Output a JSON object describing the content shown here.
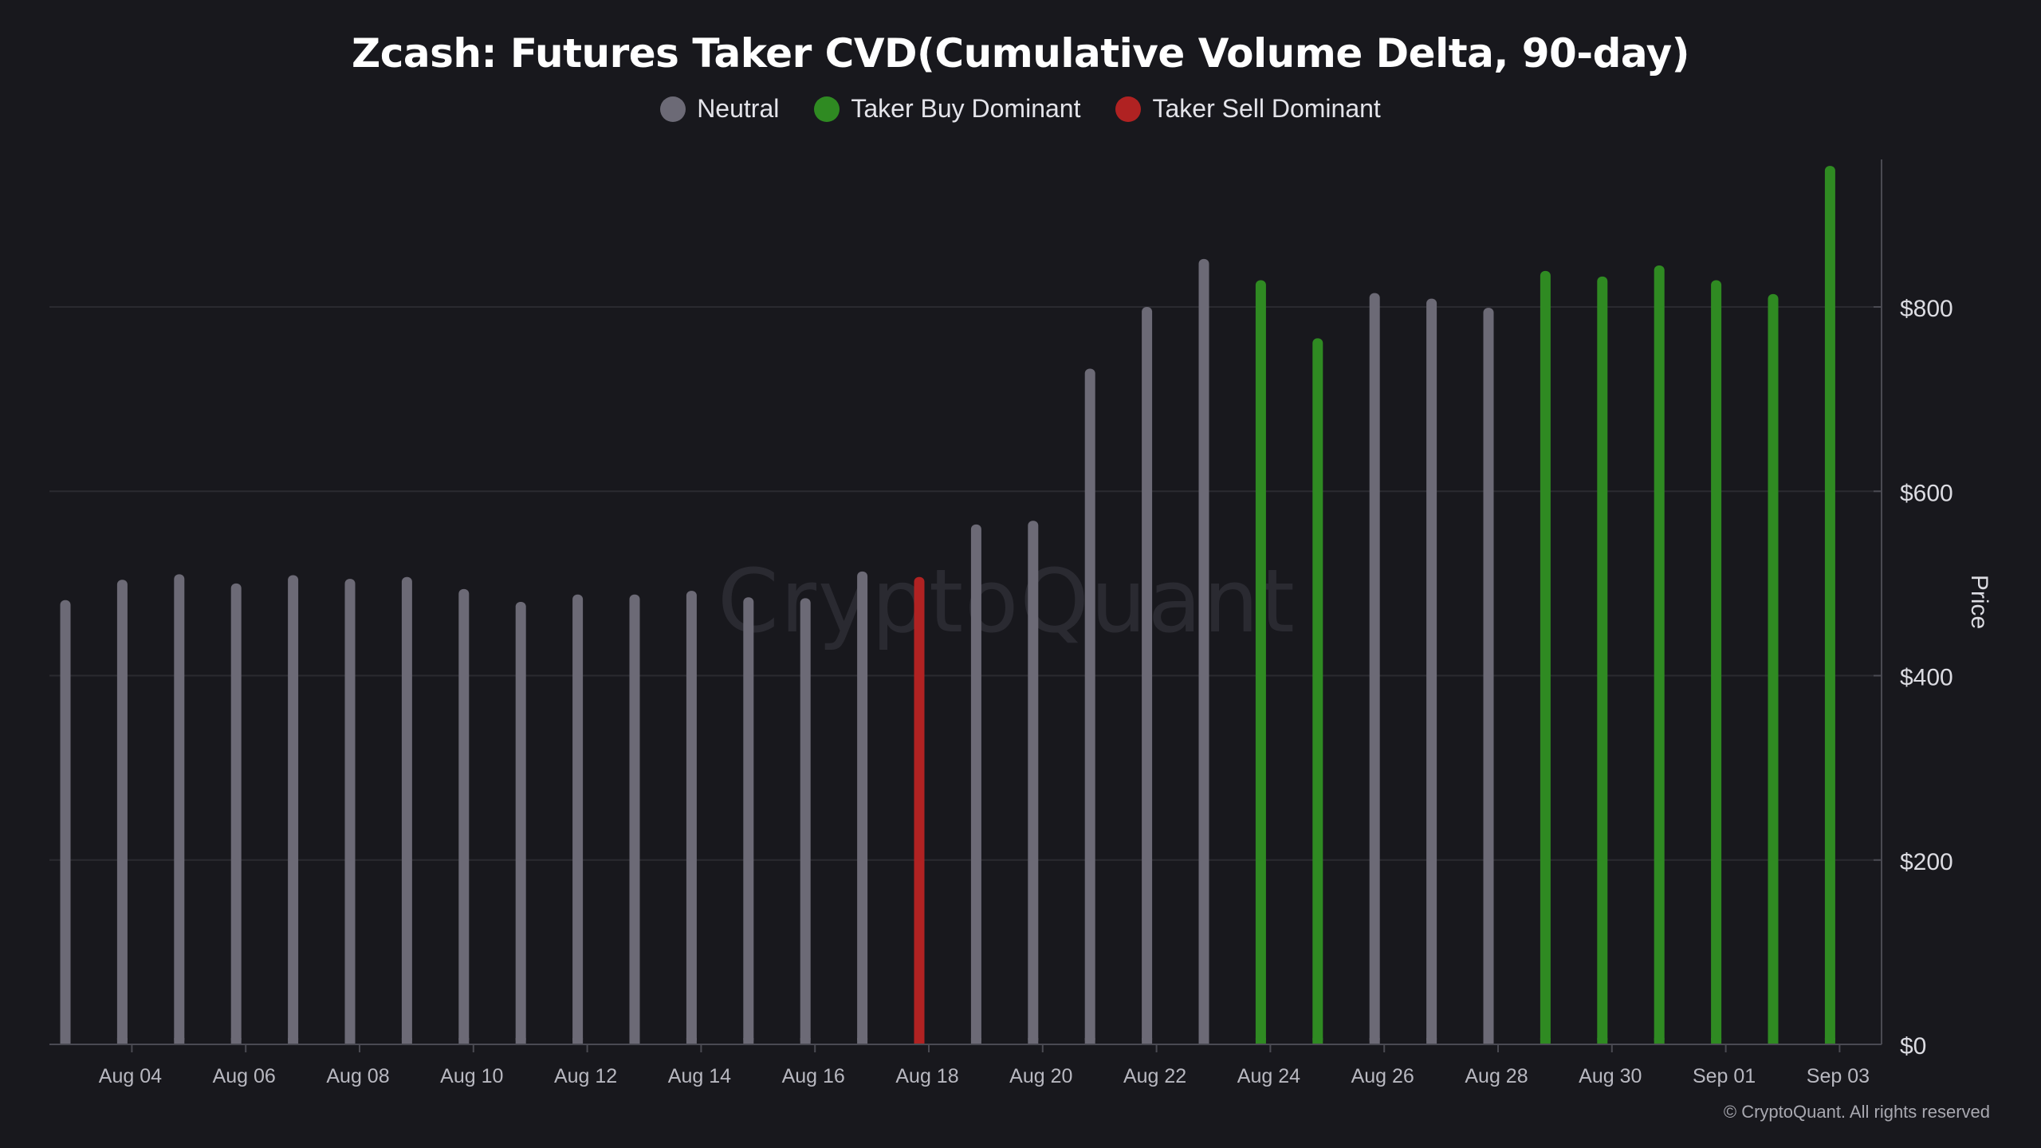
{
  "colors": {
    "background": "#18181d",
    "grid": "#2a2a30",
    "neutral": "#6c6a76",
    "buy": "#2f8a22",
    "sell": "#b02222",
    "axis_text": "#dcdce2",
    "tick_text": "#b8b8c0"
  },
  "watermark": "CryptoQuant",
  "copyright": "© CryptoQuant. All rights reserved",
  "chart_data": {
    "type": "bar",
    "title": "Zcash: Futures Taker CVD(Cumulative Volume Delta, 90-day)",
    "ylabel": "Price",
    "ylim": [
      0,
      960
    ],
    "y_axis_position": "right",
    "yticks": [
      0,
      200,
      400,
      600,
      800
    ],
    "ytick_labels": [
      "$0",
      "$200",
      "$400",
      "$600",
      "$800"
    ],
    "x_tick_labels": [
      "Aug 04",
      "Aug 06",
      "Aug 08",
      "Aug 10",
      "Aug 12",
      "Aug 14",
      "Aug 16",
      "Aug 18",
      "Aug 20",
      "Aug 22",
      "Aug 24",
      "Aug 26",
      "Aug 28",
      "Aug 30",
      "Sep 01",
      "Sep 03"
    ],
    "legend": [
      {
        "name": "Neutral",
        "color": "#6c6a76"
      },
      {
        "name": "Taker Buy Dominant",
        "color": "#2f8a22"
      },
      {
        "name": "Taker Sell Dominant",
        "color": "#b02222"
      }
    ],
    "legend_position": "top",
    "grid": true,
    "categories": [
      "Aug 03",
      "Aug 04",
      "Aug 05",
      "Aug 06",
      "Aug 07",
      "Aug 08",
      "Aug 09",
      "Aug 10",
      "Aug 11",
      "Aug 12",
      "Aug 13",
      "Aug 14",
      "Aug 15",
      "Aug 16",
      "Aug 17",
      "Aug 18",
      "Aug 19",
      "Aug 20",
      "Aug 21",
      "Aug 22",
      "Aug 23",
      "Aug 24",
      "Aug 25",
      "Aug 26",
      "Aug 27",
      "Aug 28",
      "Aug 29",
      "Aug 30",
      "Aug 31",
      "Sep 01",
      "Sep 02",
      "Sep 03"
    ],
    "values": [
      482,
      504,
      510,
      500,
      509,
      505,
      507,
      494,
      480,
      488,
      488,
      492,
      485,
      484,
      513,
      507,
      564,
      568,
      733,
      800,
      852,
      829,
      766,
      815,
      809,
      799,
      839,
      833,
      845,
      829,
      814,
      953
    ],
    "status": [
      "Neutral",
      "Neutral",
      "Neutral",
      "Neutral",
      "Neutral",
      "Neutral",
      "Neutral",
      "Neutral",
      "Neutral",
      "Neutral",
      "Neutral",
      "Neutral",
      "Neutral",
      "Neutral",
      "Neutral",
      "Taker Sell Dominant",
      "Neutral",
      "Neutral",
      "Neutral",
      "Neutral",
      "Neutral",
      "Taker Buy Dominant",
      "Taker Buy Dominant",
      "Neutral",
      "Neutral",
      "Neutral",
      "Taker Buy Dominant",
      "Taker Buy Dominant",
      "Taker Buy Dominant",
      "Taker Buy Dominant",
      "Taker Buy Dominant",
      "Taker Buy Dominant"
    ]
  }
}
